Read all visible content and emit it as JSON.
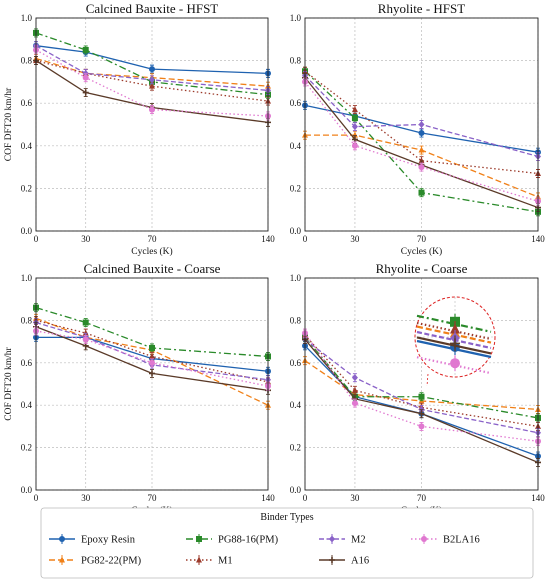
{
  "chart_data": [
    {
      "type": "line",
      "title": "Calcined Bauxite - HFST",
      "xlabel": "Cycles (K)",
      "ylabel": "COF DFT20 km/hr",
      "x": [
        0,
        30,
        70,
        140
      ],
      "xticks": [
        "0",
        "30",
        "70",
        "140"
      ],
      "ylim": [
        0,
        1.0
      ],
      "yticks": [
        "0.0",
        "0.2",
        "0.4",
        "0.6",
        "0.8",
        "1.0"
      ],
      "grid": true,
      "series": [
        {
          "name": "Epoxy Resin",
          "values": [
            0.87,
            0.84,
            0.76,
            0.74
          ]
        },
        {
          "name": "PG82-22(PM)",
          "values": [
            0.81,
            0.74,
            0.72,
            0.68
          ]
        },
        {
          "name": "PG88-16(PM)",
          "values": [
            0.93,
            0.85,
            0.7,
            0.64
          ]
        },
        {
          "name": "M1",
          "values": [
            0.8,
            0.74,
            0.68,
            0.61
          ]
        },
        {
          "name": "M2",
          "values": [
            0.87,
            0.74,
            0.71,
            0.66
          ]
        },
        {
          "name": "A16",
          "values": [
            0.8,
            0.65,
            0.58,
            0.51
          ]
        },
        {
          "name": "B2LA16",
          "values": [
            0.85,
            0.72,
            0.57,
            0.54
          ]
        }
      ]
    },
    {
      "type": "line",
      "title": "Rhyolite - HFST",
      "xlabel": "Cycles (K)",
      "ylabel": "",
      "x": [
        0,
        30,
        70,
        140
      ],
      "xticks": [
        "0",
        "30",
        "70",
        "140"
      ],
      "ylim": [
        0,
        1.0
      ],
      "yticks": [
        "0.0",
        "0.2",
        "0.4",
        "0.6",
        "0.8",
        "1.0"
      ],
      "grid": true,
      "series": [
        {
          "name": "Epoxy Resin",
          "values": [
            0.59,
            0.54,
            0.46,
            0.37
          ]
        },
        {
          "name": "PG82-22(PM)",
          "values": [
            0.45,
            0.45,
            0.38,
            0.16
          ]
        },
        {
          "name": "PG88-16(PM)",
          "values": [
            0.75,
            0.53,
            0.18,
            0.09
          ]
        },
        {
          "name": "M1",
          "values": [
            0.75,
            0.57,
            0.33,
            0.27
          ]
        },
        {
          "name": "M2",
          "values": [
            0.73,
            0.49,
            0.5,
            0.35
          ]
        },
        {
          "name": "A16",
          "values": [
            0.72,
            0.43,
            0.31,
            0.11
          ]
        },
        {
          "name": "B2LA16",
          "values": [
            0.7,
            0.4,
            0.3,
            0.14
          ]
        }
      ]
    },
    {
      "type": "line",
      "title": "Calcined Bauxite - Coarse",
      "xlabel": "Cycles (K)",
      "ylabel": "COF DFT20 km/hr",
      "x": [
        0,
        30,
        70,
        140
      ],
      "xticks": [
        "0",
        "30",
        "70",
        "140"
      ],
      "ylim": [
        0,
        1.0
      ],
      "yticks": [
        "0.0",
        "0.2",
        "0.4",
        "0.6",
        "0.8",
        "1.0"
      ],
      "grid": true,
      "series": [
        {
          "name": "Epoxy Resin",
          "values": [
            0.72,
            0.72,
            0.62,
            0.56
          ]
        },
        {
          "name": "PG82-22(PM)",
          "values": [
            0.81,
            0.72,
            0.66,
            0.4
          ]
        },
        {
          "name": "PG88-16(PM)",
          "values": [
            0.86,
            0.79,
            0.67,
            0.63
          ]
        },
        {
          "name": "M1",
          "values": [
            0.8,
            0.74,
            0.63,
            0.51
          ]
        },
        {
          "name": "M2",
          "values": [
            0.79,
            0.72,
            0.59,
            0.52
          ]
        },
        {
          "name": "A16",
          "values": [
            0.77,
            0.68,
            0.55,
            0.47
          ]
        },
        {
          "name": "B2LA16",
          "values": [
            0.75,
            0.71,
            0.6,
            0.49
          ]
        }
      ]
    },
    {
      "type": "line",
      "title": "Rhyolite - Coarse",
      "xlabel": "Cycles (K)",
      "ylabel": "",
      "x": [
        0,
        30,
        70,
        140
      ],
      "xticks": [
        "0",
        "30",
        "70",
        "140"
      ],
      "ylim": [
        0,
        1.0
      ],
      "yticks": [
        "0.0",
        "0.2",
        "0.4",
        "0.6",
        "0.8",
        "1.0"
      ],
      "grid": true,
      "series": [
        {
          "name": "Epoxy Resin",
          "values": [
            0.68,
            0.44,
            0.36,
            0.16
          ]
        },
        {
          "name": "PG82-22(PM)",
          "values": [
            0.61,
            0.45,
            0.42,
            0.38
          ]
        },
        {
          "name": "PG88-16(PM)",
          "values": [
            0.72,
            0.44,
            0.44,
            0.34
          ]
        },
        {
          "name": "M1",
          "values": [
            0.73,
            0.47,
            0.39,
            0.3
          ]
        },
        {
          "name": "M2",
          "values": [
            0.71,
            0.53,
            0.38,
            0.27
          ]
        },
        {
          "name": "A16",
          "values": [
            0.71,
            0.43,
            0.36,
            0.13
          ]
        },
        {
          "name": "B2LA16",
          "values": [
            0.74,
            0.41,
            0.3,
            0.23
          ]
        }
      ]
    }
  ],
  "legend": {
    "title": "Binder Types",
    "entries": [
      "Epoxy Resin",
      "PG82-22(PM)",
      "PG88-16(PM)",
      "M1",
      "M2",
      "A16",
      "B2LA16"
    ]
  },
  "styles": [
    {
      "color": "#1f62b0",
      "dash": "",
      "marker": "circle"
    },
    {
      "color": "#f08018",
      "dash": "6,3",
      "marker": "triangle"
    },
    {
      "color": "#2a8a2a",
      "dash": "7,3,2,3",
      "marker": "square"
    },
    {
      "color": "#9c3a2a",
      "dash": "1.5,2.5",
      "marker": "triangle"
    },
    {
      "color": "#8a62c8",
      "dash": "5,2.5",
      "marker": "diamond"
    },
    {
      "color": "#5a3a28",
      "dash": "",
      "marker": "plus"
    },
    {
      "color": "#e078d0",
      "dash": "1.5,2.5",
      "marker": "circle"
    }
  ],
  "inset_zoom": {
    "values": [
      0.62,
      0.7,
      0.76,
      0.72,
      0.67,
      0.64,
      0.53
    ]
  }
}
